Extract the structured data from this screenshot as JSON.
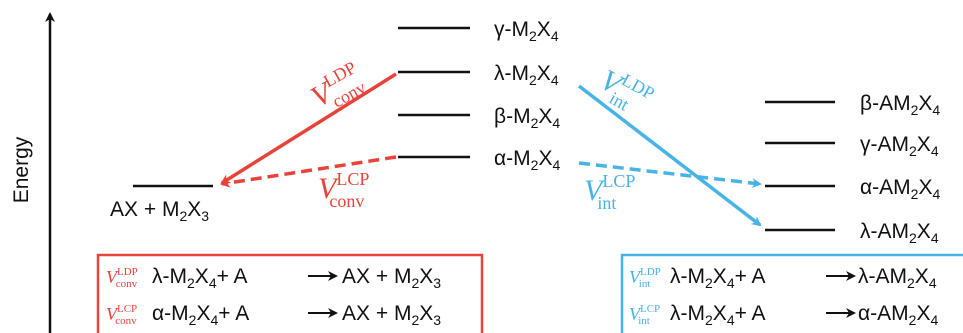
{
  "axis": {
    "label": "Energy"
  },
  "colors": {
    "conversion": "#e8433a",
    "intercalation": "#47b3e6",
    "level": "#111111"
  },
  "levels_left": {
    "gamma": {
      "prefix": "γ-M",
      "x_sub": "X",
      "sub_m": "2",
      "sub_x": "4"
    },
    "lambda": {
      "prefix": "λ-M",
      "x_sub": "X",
      "sub_m": "2",
      "sub_x": "4"
    },
    "beta": {
      "prefix": "β-M",
      "x_sub": "X",
      "sub_m": "2",
      "sub_x": "4"
    },
    "alpha": {
      "prefix": "α-M",
      "x_sub": "X",
      "sub_m": "2",
      "sub_x": "4"
    }
  },
  "product_left": {
    "text_a": "AX + M",
    "sub_m": "2",
    "text_b": "X",
    "sub_x": "3"
  },
  "levels_right": {
    "beta": {
      "prefix": "β-AM",
      "x_sub": "X",
      "sub_m": "2",
      "sub_x": "4"
    },
    "gamma": {
      "prefix": "γ-AM",
      "x_sub": "X",
      "sub_m": "2",
      "sub_x": "4"
    },
    "alpha": {
      "prefix": "α-AM",
      "x_sub": "X",
      "sub_m": "2",
      "sub_x": "4"
    },
    "lambda": {
      "prefix": "λ-AM",
      "x_sub": "X",
      "sub_m": "2",
      "sub_x": "4"
    }
  },
  "arrow_labels": {
    "conv_ldp": {
      "v": "V",
      "sup": "LDP",
      "sub": "conv"
    },
    "conv_lcp": {
      "v": "V",
      "sup": "LCP",
      "sub": "conv"
    },
    "int_ldp": {
      "v": "V",
      "sup": "LDP",
      "sub": "int"
    },
    "int_lcp": {
      "v": "V",
      "sup": "LCP",
      "sub": "int"
    }
  },
  "legend_left": [
    {
      "v": "V",
      "sup": "LDP",
      "sub": "conv",
      "reactant": "λ-M",
      "r_sub_m": "2",
      "r_x": "X",
      "r_sub_x": "4",
      "plus": "+ A",
      "product": "AX + M",
      "p_sub_m": "2",
      "p_x": "X",
      "p_sub_x": "3"
    },
    {
      "v": "V",
      "sup": "LCP",
      "sub": "conv",
      "reactant": "α-M",
      "r_sub_m": "2",
      "r_x": "X",
      "r_sub_x": "4",
      "plus": "+ A",
      "product": "AX + M",
      "p_sub_m": "2",
      "p_x": "X",
      "p_sub_x": "3"
    }
  ],
  "legend_right": [
    {
      "v": "V",
      "sup": "LDP",
      "sub": "int",
      "reactant": "λ-M",
      "r_sub_m": "2",
      "r_x": "X",
      "r_sub_x": "4",
      "plus": "+ A",
      "product": "λ-AM",
      "p_sub_m": "2",
      "p_x": "X",
      "p_sub_x": "4"
    },
    {
      "v": "V",
      "sup": "LCP",
      "sub": "int",
      "reactant": "λ-M",
      "r_sub_m": "2",
      "r_x": "X",
      "r_sub_x": "4",
      "plus": "+ A",
      "product": "α-AM",
      "p_sub_m": "2",
      "p_x": "X",
      "p_sub_x": "4"
    }
  ]
}
